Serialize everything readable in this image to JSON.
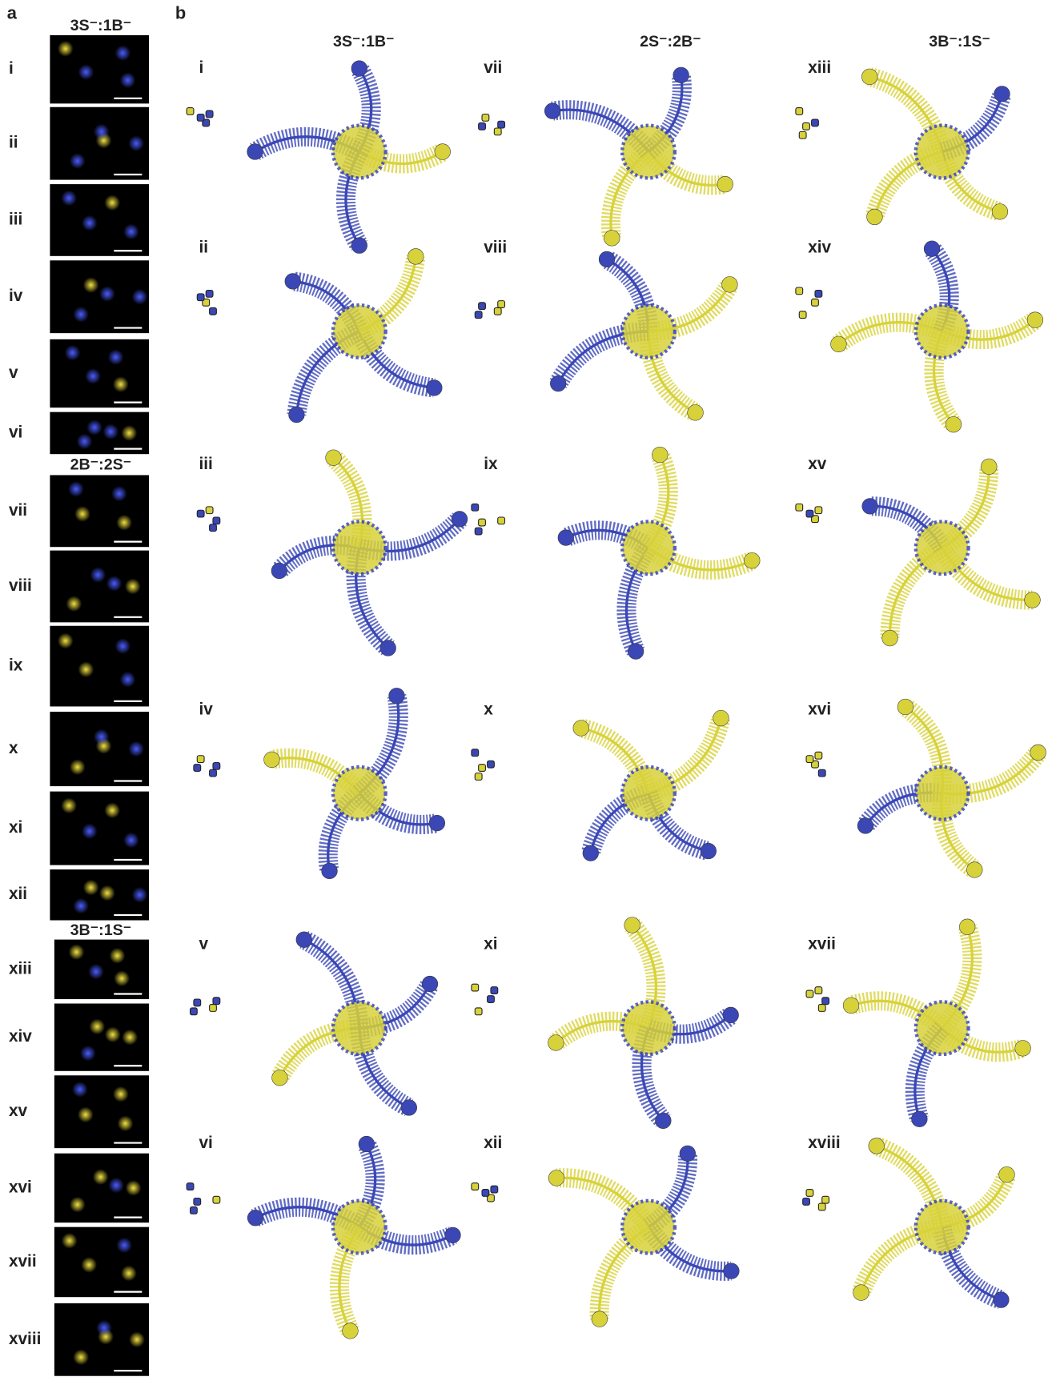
{
  "panel_a": {
    "label": "a",
    "groups": [
      {
        "title": "3S⁻:1B⁻",
        "rows": [
          "i",
          "ii",
          "iii",
          "iv",
          "v",
          "vi"
        ]
      },
      {
        "title": "2B⁻:2S⁻",
        "rows": [
          "vii",
          "viii",
          "ix",
          "x",
          "xi",
          "xii"
        ]
      },
      {
        "title": "3B⁻:1S⁻",
        "rows": [
          "xiii",
          "xiv",
          "xv",
          "xvi",
          "xvii",
          "xviii"
        ]
      }
    ]
  },
  "panel_b": {
    "label": "b",
    "columns": [
      {
        "title": "3S⁻:1B⁻",
        "cells": [
          "i",
          "ii",
          "iii",
          "iv",
          "v",
          "vi"
        ]
      },
      {
        "title": "2S⁻:2B⁻",
        "cells": [
          "vii",
          "viii",
          "ix",
          "x",
          "xi",
          "xii"
        ]
      },
      {
        "title": "3B⁻:1S⁻",
        "cells": [
          "xiii",
          "xiv",
          "xv",
          "xvi",
          "xvii",
          "xviii"
        ]
      }
    ]
  }
}
